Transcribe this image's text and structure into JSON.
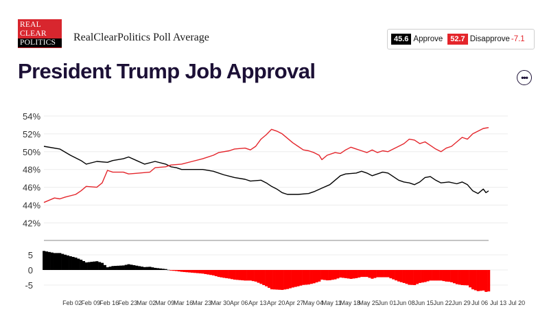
{
  "brand": {
    "logo_lines": [
      "REAL",
      "CLEAR",
      "POLITICS"
    ],
    "subtitle": "RealClearPolitics Poll Average"
  },
  "title": "President Trump Job Approval",
  "legend": {
    "approve_value": "45.6",
    "approve_label": "Approve",
    "disapprove_value": "52.7",
    "disapprove_label": "Disapprove",
    "spread": "-7.1"
  },
  "menu": {
    "label": "•••"
  },
  "colors": {
    "approve": "#000000",
    "disapprove": "#e4252b",
    "title": "#1c1036"
  },
  "chart_data": {
    "type": "line",
    "title": "President Trump Job Approval",
    "y_ticks": [
      "54%",
      "52%",
      "50%",
      "48%",
      "46%",
      "44%",
      "42%"
    ],
    "ylim": [
      41.5,
      54.3
    ],
    "x_tick_labels": [
      "Feb 02",
      "Feb 09",
      "Feb 16",
      "Feb 23",
      "Mar 02",
      "Mar 09",
      "Mar 16",
      "Mar 23",
      "Mar 30",
      "Apr 06",
      "Apr 13",
      "Apr 20",
      "Apr 27",
      "May 04",
      "May 11",
      "May 18",
      "May 25",
      "Jun 01",
      "Jun 08",
      "Jun 15",
      "Jun 22",
      "Jun 29",
      "Jul 06",
      "Jul 13",
      "Jul 20"
    ],
    "x_days": [
      -6,
      162
    ],
    "series": [
      {
        "name": "Approve",
        "color": "#000000",
        "points": [
          [
            -6,
            50.6
          ],
          [
            0,
            50.3
          ],
          [
            4,
            49.6
          ],
          [
            8,
            49.0
          ],
          [
            10,
            48.6
          ],
          [
            14,
            48.9
          ],
          [
            18,
            48.8
          ],
          [
            20,
            49.0
          ],
          [
            24,
            49.2
          ],
          [
            26,
            49.4
          ],
          [
            29,
            49.0
          ],
          [
            32,
            48.6
          ],
          [
            36,
            48.9
          ],
          [
            40,
            48.6
          ],
          [
            42,
            48.3
          ],
          [
            44,
            48.2
          ],
          [
            46,
            48.0
          ],
          [
            50,
            48.0
          ],
          [
            54,
            48.0
          ],
          [
            58,
            47.8
          ],
          [
            62,
            47.4
          ],
          [
            66,
            47.1
          ],
          [
            70,
            46.9
          ],
          [
            72,
            46.7
          ],
          [
            76,
            46.8
          ],
          [
            78,
            46.5
          ],
          [
            80,
            46.1
          ],
          [
            82,
            45.8
          ],
          [
            84,
            45.4
          ],
          [
            86,
            45.2
          ],
          [
            90,
            45.2
          ],
          [
            94,
            45.3
          ],
          [
            96,
            45.5
          ],
          [
            99,
            45.9
          ],
          [
            102,
            46.3
          ],
          [
            104,
            46.8
          ],
          [
            106,
            47.3
          ],
          [
            108,
            47.5
          ],
          [
            112,
            47.6
          ],
          [
            114,
            47.8
          ],
          [
            116,
            47.6
          ],
          [
            118,
            47.3
          ],
          [
            120,
            47.5
          ],
          [
            122,
            47.7
          ],
          [
            124,
            47.6
          ],
          [
            126,
            47.2
          ],
          [
            128,
            46.8
          ],
          [
            130,
            46.6
          ],
          [
            132,
            46.5
          ],
          [
            134,
            46.3
          ],
          [
            136,
            46.6
          ],
          [
            138,
            47.1
          ],
          [
            140,
            47.2
          ],
          [
            142,
            46.8
          ],
          [
            144,
            46.5
          ],
          [
            147,
            46.6
          ],
          [
            150,
            46.4
          ],
          [
            152,
            46.6
          ],
          [
            154,
            46.3
          ],
          [
            156,
            45.6
          ],
          [
            158,
            45.3
          ],
          [
            160,
            45.8
          ],
          [
            161,
            45.4
          ],
          [
            162,
            45.6
          ]
        ]
      },
      {
        "name": "Disapprove",
        "color": "#e4252b",
        "points": [
          [
            -6,
            44.3
          ],
          [
            -2,
            44.8
          ],
          [
            0,
            44.7
          ],
          [
            2,
            44.9
          ],
          [
            6,
            45.2
          ],
          [
            8,
            45.6
          ],
          [
            10,
            46.1
          ],
          [
            14,
            46.0
          ],
          [
            16,
            46.5
          ],
          [
            18,
            47.9
          ],
          [
            20,
            47.7
          ],
          [
            24,
            47.7
          ],
          [
            26,
            47.5
          ],
          [
            30,
            47.6
          ],
          [
            34,
            47.7
          ],
          [
            36,
            48.2
          ],
          [
            40,
            48.3
          ],
          [
            42,
            48.5
          ],
          [
            46,
            48.6
          ],
          [
            50,
            48.9
          ],
          [
            54,
            49.2
          ],
          [
            58,
            49.6
          ],
          [
            60,
            49.9
          ],
          [
            64,
            50.1
          ],
          [
            66,
            50.3
          ],
          [
            70,
            50.4
          ],
          [
            72,
            50.2
          ],
          [
            74,
            50.6
          ],
          [
            76,
            51.4
          ],
          [
            78,
            51.9
          ],
          [
            80,
            52.5
          ],
          [
            82,
            52.3
          ],
          [
            84,
            52.0
          ],
          [
            86,
            51.5
          ],
          [
            88,
            51.0
          ],
          [
            90,
            50.6
          ],
          [
            92,
            50.2
          ],
          [
            94,
            50.1
          ],
          [
            96,
            49.9
          ],
          [
            98,
            49.6
          ],
          [
            99,
            49.1
          ],
          [
            101,
            49.6
          ],
          [
            104,
            49.9
          ],
          [
            106,
            49.8
          ],
          [
            108,
            50.2
          ],
          [
            110,
            50.5
          ],
          [
            112,
            50.3
          ],
          [
            114,
            50.1
          ],
          [
            116,
            49.9
          ],
          [
            118,
            50.2
          ],
          [
            120,
            49.9
          ],
          [
            122,
            50.1
          ],
          [
            124,
            50.0
          ],
          [
            126,
            50.3
          ],
          [
            128,
            50.6
          ],
          [
            130,
            50.9
          ],
          [
            132,
            51.4
          ],
          [
            134,
            51.3
          ],
          [
            136,
            50.9
          ],
          [
            138,
            51.1
          ],
          [
            140,
            50.7
          ],
          [
            142,
            50.3
          ],
          [
            144,
            50.0
          ],
          [
            146,
            50.4
          ],
          [
            148,
            50.6
          ],
          [
            150,
            51.1
          ],
          [
            152,
            51.6
          ],
          [
            154,
            51.4
          ],
          [
            156,
            52.0
          ],
          [
            158,
            52.3
          ],
          [
            160,
            52.6
          ],
          [
            162,
            52.7
          ]
        ]
      }
    ],
    "spread_chart": {
      "type": "bar",
      "y_ticks": [
        "5",
        "0",
        "-5"
      ],
      "ylim": [
        -7.5,
        7.5
      ],
      "note": "spread = approve - disapprove, one bar per day"
    }
  }
}
